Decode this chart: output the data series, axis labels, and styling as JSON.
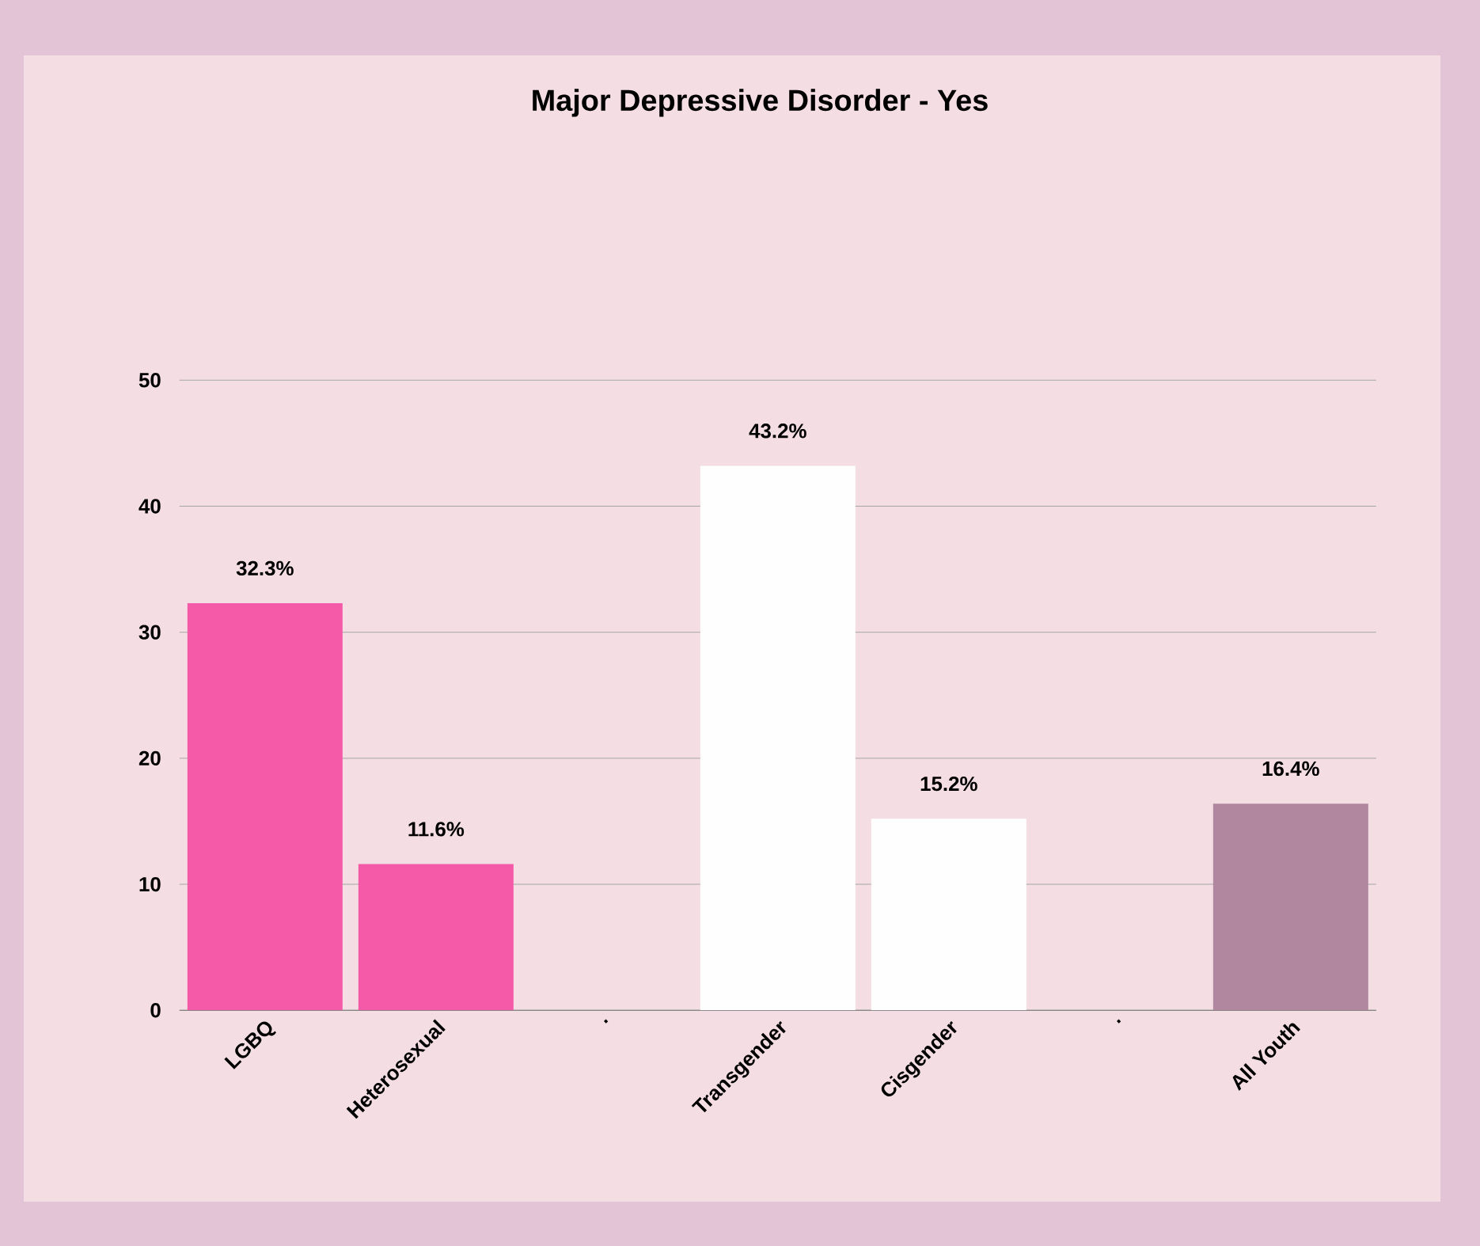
{
  "chart_data": {
    "type": "bar",
    "title": "Major Depressive Disorder - Yes",
    "categories": [
      "LGBQ",
      "Heterosexual",
      ".",
      "Transgender",
      "Cisgender",
      ".",
      "All Youth"
    ],
    "values": [
      32.3,
      11.6,
      null,
      43.2,
      15.2,
      null,
      16.4
    ],
    "colors": [
      "#f45aa8",
      "#f45aa8",
      "#f45aa8",
      "#fefefe",
      "#fefefe",
      "#fefefe",
      "#b0879e"
    ],
    "value_labels": [
      "32.3%",
      "11.6%",
      null,
      "43.2%",
      "15.2%",
      null,
      "16.4%"
    ],
    "ylim": [
      0,
      50
    ],
    "yticks": [
      0,
      10,
      20,
      30,
      40,
      50
    ],
    "grid": "y"
  }
}
